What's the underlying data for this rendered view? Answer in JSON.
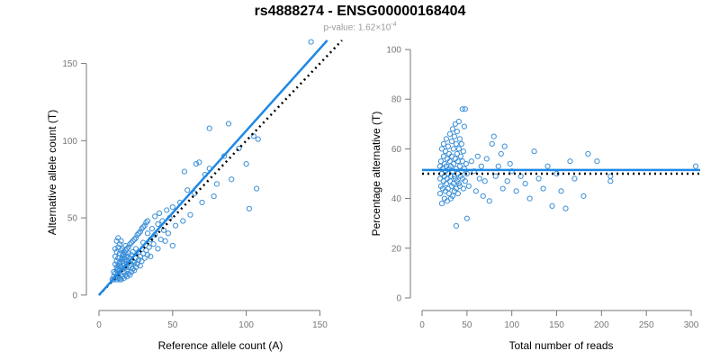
{
  "title": "rs4888274 - ENSG00000168404",
  "subtitle": {
    "prefix": "p-value: 1.62",
    "times": "×10",
    "exponent": "-4"
  },
  "colors": {
    "points": "#3a8fd8",
    "fit": "#1e88e5",
    "reference": "#000000",
    "axis": "#777777"
  },
  "chart_data": [
    {
      "type": "scatter",
      "xlabel": "Reference allele count (A)",
      "ylabel": "Alternative allele count (T)",
      "xlim": [
        0,
        165
      ],
      "ylim": [
        -3,
        162
      ],
      "xticks": [
        0,
        50,
        100,
        150
      ],
      "yticks": [
        0,
        50,
        100,
        150
      ],
      "fit_line": {
        "x0": 0,
        "y0": 0,
        "x1": 155,
        "y1": 165
      },
      "reference_line": {
        "x0": 0,
        "y0": 0,
        "x1": 165,
        "y1": 165
      },
      "points": [
        [
          10,
          12
        ],
        [
          10,
          15
        ],
        [
          11,
          20
        ],
        [
          11,
          25
        ],
        [
          11,
          30
        ],
        [
          12,
          12
        ],
        [
          12,
          18
        ],
        [
          12,
          22
        ],
        [
          12,
          28
        ],
        [
          12,
          35
        ],
        [
          13,
          14
        ],
        [
          13,
          19
        ],
        [
          13,
          24
        ],
        [
          13,
          31
        ],
        [
          13,
          37
        ],
        [
          14,
          11
        ],
        [
          14,
          16
        ],
        [
          14,
          21
        ],
        [
          14,
          27
        ],
        [
          14,
          33
        ],
        [
          15,
          13
        ],
        [
          15,
          18
        ],
        [
          15,
          23
        ],
        [
          15,
          29
        ],
        [
          15,
          35
        ],
        [
          16,
          12
        ],
        [
          16,
          17
        ],
        [
          16,
          22
        ],
        [
          16,
          26
        ],
        [
          16,
          30
        ],
        [
          17,
          11
        ],
        [
          17,
          15
        ],
        [
          17,
          19
        ],
        [
          17,
          24
        ],
        [
          17,
          28
        ],
        [
          18,
          13
        ],
        [
          18,
          18
        ],
        [
          18,
          23
        ],
        [
          18,
          27
        ],
        [
          18,
          32
        ],
        [
          19,
          12
        ],
        [
          19,
          16
        ],
        [
          19,
          20
        ],
        [
          19,
          25
        ],
        [
          20,
          14
        ],
        [
          20,
          18
        ],
        [
          20,
          22
        ],
        [
          20,
          27
        ],
        [
          21,
          13
        ],
        [
          21,
          19
        ],
        [
          21,
          24
        ],
        [
          22,
          15
        ],
        [
          22,
          20
        ],
        [
          22,
          26
        ],
        [
          23,
          17
        ],
        [
          23,
          22
        ],
        [
          23,
          28
        ],
        [
          24,
          16
        ],
        [
          24,
          21
        ],
        [
          25,
          18
        ],
        [
          25,
          24
        ],
        [
          25,
          30
        ],
        [
          26,
          20
        ],
        [
          27,
          23
        ],
        [
          27,
          28
        ],
        [
          28,
          19
        ],
        [
          28,
          25
        ],
        [
          29,
          22
        ],
        [
          30,
          27
        ],
        [
          30,
          34
        ],
        [
          31,
          24
        ],
        [
          32,
          29
        ],
        [
          33,
          26
        ],
        [
          33,
          40
        ],
        [
          34,
          31
        ],
        [
          35,
          36
        ],
        [
          35,
          25
        ],
        [
          36,
          43
        ],
        [
          37,
          33
        ],
        [
          38,
          51
        ],
        [
          38,
          39
        ],
        [
          40,
          46
        ],
        [
          40,
          30
        ],
        [
          41,
          53
        ],
        [
          42,
          36
        ],
        [
          43,
          48
        ],
        [
          44,
          42
        ],
        [
          45,
          35
        ],
        [
          46,
          55
        ],
        [
          47,
          40
        ],
        [
          48,
          50
        ],
        [
          50,
          57
        ],
        [
          50,
          32
        ],
        [
          52,
          45
        ],
        [
          55,
          60
        ],
        [
          57,
          48
        ],
        [
          58,
          80
        ],
        [
          60,
          68
        ],
        [
          62,
          52
        ],
        [
          65,
          66
        ],
        [
          66,
          85
        ],
        [
          68,
          86
        ],
        [
          70,
          60
        ],
        [
          72,
          78
        ],
        [
          75,
          82
        ],
        [
          75,
          108
        ],
        [
          78,
          64
        ],
        [
          80,
          72
        ],
        [
          85,
          90
        ],
        [
          88,
          111
        ],
        [
          90,
          75
        ],
        [
          95,
          95
        ],
        [
          100,
          85
        ],
        [
          102,
          56
        ],
        [
          105,
          103
        ],
        [
          107,
          69
        ],
        [
          108,
          101
        ],
        [
          144,
          164
        ],
        [
          10,
          10
        ],
        [
          11,
          11
        ],
        [
          12,
          10
        ],
        [
          13,
          11
        ],
        [
          14,
          10
        ],
        [
          15,
          10
        ],
        [
          9,
          10
        ],
        [
          11,
          14
        ],
        [
          12,
          16
        ],
        [
          13,
          17
        ],
        [
          14,
          19
        ],
        [
          15,
          21
        ],
        [
          16,
          24
        ],
        [
          17,
          26
        ],
        [
          18,
          29
        ],
        [
          19,
          30
        ],
        [
          20,
          31
        ],
        [
          21,
          33
        ],
        [
          22,
          34
        ],
        [
          23,
          35
        ],
        [
          24,
          36
        ],
        [
          25,
          37
        ],
        [
          26,
          39
        ],
        [
          27,
          40
        ],
        [
          28,
          41
        ],
        [
          29,
          43
        ],
        [
          30,
          44
        ],
        [
          31,
          45
        ],
        [
          32,
          47
        ],
        [
          33,
          48
        ]
      ]
    },
    {
      "type": "scatter",
      "xlabel": "Total number of reads",
      "ylabel": "Percentage alternative (T)",
      "xlim": [
        0,
        310
      ],
      "ylim": [
        0,
        100
      ],
      "xticks": [
        0,
        50,
        100,
        150,
        200,
        250,
        300
      ],
      "yticks": [
        0,
        20,
        40,
        60,
        80,
        100
      ],
      "fit_line": {
        "x0": 0,
        "y0": 51.5,
        "x1": 310,
        "y1": 51.5
      },
      "reference_line": {
        "x0": 0,
        "y0": 50,
        "x1": 310,
        "y1": 50
      },
      "points": [
        [
          20,
          42
        ],
        [
          20,
          48
        ],
        [
          20,
          53
        ],
        [
          21,
          45
        ],
        [
          21,
          55
        ],
        [
          22,
          38
        ],
        [
          22,
          50
        ],
        [
          22,
          60
        ],
        [
          23,
          44
        ],
        [
          23,
          52
        ],
        [
          24,
          47
        ],
        [
          24,
          57
        ],
        [
          24,
          62
        ],
        [
          25,
          40
        ],
        [
          25,
          49
        ],
        [
          25,
          54
        ],
        [
          26,
          43
        ],
        [
          26,
          51
        ],
        [
          26,
          59
        ],
        [
          27,
          46
        ],
        [
          27,
          53
        ],
        [
          27,
          64
        ],
        [
          28,
          39
        ],
        [
          28,
          48
        ],
        [
          28,
          56
        ],
        [
          29,
          44
        ],
        [
          29,
          50
        ],
        [
          29,
          61
        ],
        [
          30,
          42
        ],
        [
          30,
          52
        ],
        [
          30,
          58
        ],
        [
          31,
          47
        ],
        [
          31,
          55
        ],
        [
          31,
          66
        ],
        [
          32,
          40
        ],
        [
          32,
          49
        ],
        [
          32,
          53
        ],
        [
          33,
          45
        ],
        [
          33,
          57
        ],
        [
          33,
          63
        ],
        [
          34,
          41
        ],
        [
          34,
          51
        ],
        [
          34,
          68
        ],
        [
          35,
          46
        ],
        [
          35,
          54
        ],
        [
          35,
          60
        ],
        [
          36,
          43
        ],
        [
          36,
          49
        ],
        [
          36,
          65
        ],
        [
          37,
          48
        ],
        [
          37,
          56
        ],
        [
          37,
          70
        ],
        [
          38,
          44
        ],
        [
          38,
          52
        ],
        [
          38,
          62
        ],
        [
          39,
          47
        ],
        [
          39,
          58
        ],
        [
          39,
          67
        ],
        [
          40,
          42
        ],
        [
          40,
          50
        ],
        [
          40,
          55
        ],
        [
          41,
          46
        ],
        [
          41,
          60
        ],
        [
          41,
          71
        ],
        [
          42,
          45
        ],
        [
          42,
          53
        ],
        [
          42,
          64
        ],
        [
          43,
          49
        ],
        [
          43,
          57
        ],
        [
          44,
          51
        ],
        [
          44,
          62
        ],
        [
          45,
          48
        ],
        [
          45,
          55
        ],
        [
          45,
          76
        ],
        [
          46,
          44
        ],
        [
          46,
          59
        ],
        [
          47,
          52
        ],
        [
          47,
          69
        ],
        [
          48,
          47
        ],
        [
          48,
          76
        ],
        [
          49,
          54
        ],
        [
          50,
          32
        ],
        [
          50,
          50
        ],
        [
          52,
          45
        ],
        [
          38,
          29
        ],
        [
          55,
          55
        ],
        [
          58,
          51
        ],
        [
          60,
          43
        ],
        [
          62,
          57
        ],
        [
          64,
          48
        ],
        [
          66,
          53
        ],
        [
          68,
          41
        ],
        [
          70,
          47
        ],
        [
          72,
          56
        ],
        [
          75,
          39
        ],
        [
          78,
          62
        ],
        [
          80,
          65
        ],
        [
          82,
          49
        ],
        [
          85,
          53
        ],
        [
          88,
          58
        ],
        [
          90,
          44
        ],
        [
          92,
          61
        ],
        [
          95,
          47
        ],
        [
          98,
          54
        ],
        [
          100,
          51
        ],
        [
          105,
          43
        ],
        [
          110,
          49
        ],
        [
          115,
          46
        ],
        [
          120,
          40
        ],
        [
          125,
          59
        ],
        [
          130,
          48
        ],
        [
          135,
          44
        ],
        [
          140,
          53
        ],
        [
          145,
          37
        ],
        [
          150,
          50
        ],
        [
          155,
          43
        ],
        [
          160,
          36
        ],
        [
          165,
          55
        ],
        [
          170,
          48
        ],
        [
          180,
          41
        ],
        [
          185,
          58
        ],
        [
          195,
          55
        ],
        [
          210,
          49
        ],
        [
          210,
          47
        ],
        [
          305,
          53
        ]
      ]
    }
  ]
}
